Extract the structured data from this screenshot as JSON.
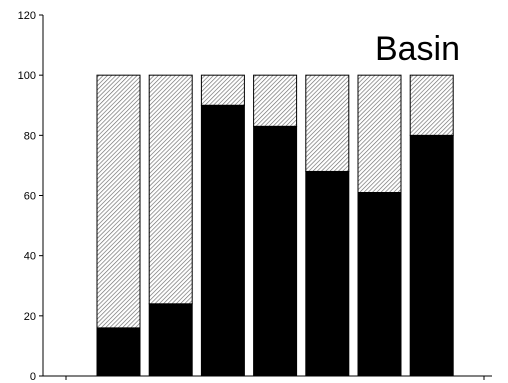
{
  "chart_data": {
    "type": "bar",
    "stacked": true,
    "title": "Basin",
    "xlabel": "",
    "ylabel": "",
    "ylim": [
      0,
      120
    ],
    "yticks": [
      0,
      20,
      40,
      60,
      80,
      100,
      120
    ],
    "grid": false,
    "legend": "none",
    "category_count": 7,
    "series": [
      {
        "values": [
          16,
          24,
          90,
          83,
          68,
          61,
          80
        ],
        "color": "#000000",
        "fill": "solid"
      },
      {
        "values": [
          84,
          76,
          10,
          17,
          32,
          39,
          20
        ],
        "color": "#bdbdbd",
        "fill": "hatched"
      }
    ]
  }
}
